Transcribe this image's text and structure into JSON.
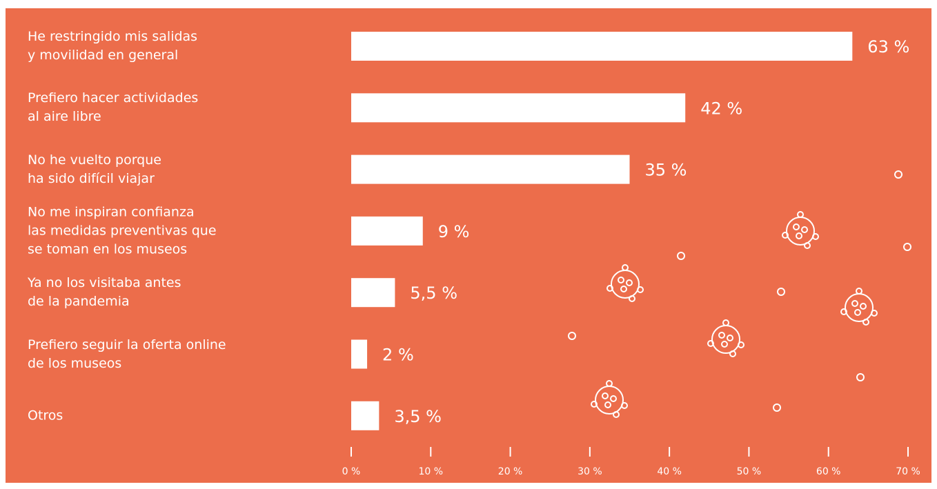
{
  "chart_data": {
    "type": "bar",
    "orientation": "horizontal",
    "categories": [
      "He restringido mis salidas\ny movilidad en general",
      "Prefiero hacer actividades\nal aire libre",
      "No he vuelto porque\nha sido difícil viajar",
      "No me inspiran confianza\nlas medidas preventivas que\nse toman en los museos",
      "Ya no los visitaba antes\nde la pandemia",
      "Prefiero seguir la oferta online\nde los museos",
      "Otros"
    ],
    "values": [
      63,
      42,
      35,
      9,
      5.5,
      2,
      3.5
    ],
    "value_labels": [
      "63 %",
      "42 %",
      "35 %",
      "9 %",
      "5,5 %",
      "2 %",
      "3,5 %"
    ],
    "color": "#ffffff",
    "xlim": [
      0,
      70
    ],
    "xticks": [
      {
        "value": 0,
        "label": "0 %"
      },
      {
        "value": 10,
        "label": "10 %"
      },
      {
        "value": 20,
        "label": "20 %"
      },
      {
        "value": 30,
        "label": "30 %"
      },
      {
        "value": 40,
        "label": "40 %"
      },
      {
        "value": 50,
        "label": "50 %"
      },
      {
        "value": 60,
        "label": "60 %"
      },
      {
        "value": 70,
        "label": "70 %"
      }
    ],
    "grid": false
  }
}
